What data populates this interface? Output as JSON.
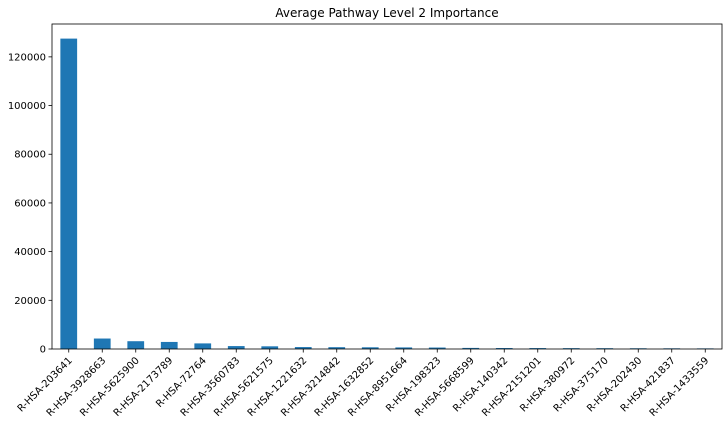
{
  "chart_data": {
    "type": "bar",
    "title": "Average Pathway Level 2 Importance",
    "xlabel": "",
    "ylabel": "",
    "categories": [
      "R-HSA-203641",
      "R-HSA-3928663",
      "R-HSA-5625900",
      "R-HSA-2173789",
      "R-HSA-72764",
      "R-HSA-3560783",
      "R-HSA-5621575",
      "R-HSA-1221632",
      "R-HSA-3214842",
      "R-HSA-1632852",
      "R-HSA-8951664",
      "R-HSA-198323",
      "R-HSA-5668599",
      "R-HSA-140342",
      "R-HSA-2151201",
      "R-HSA-380972",
      "R-HSA-375170",
      "R-HSA-202430",
      "R-HSA-421837",
      "R-HSA-1433559"
    ],
    "values": [
      127500,
      4300,
      3200,
      2900,
      2300,
      1200,
      1100,
      800,
      750,
      700,
      650,
      600,
      450,
      400,
      380,
      350,
      330,
      300,
      280,
      250
    ],
    "ylim": [
      0,
      133500
    ],
    "yticks": [
      0,
      20000,
      40000,
      60000,
      80000,
      100000,
      120000
    ],
    "bar_color": "#1f77b4",
    "grid": false,
    "legend": "none"
  }
}
